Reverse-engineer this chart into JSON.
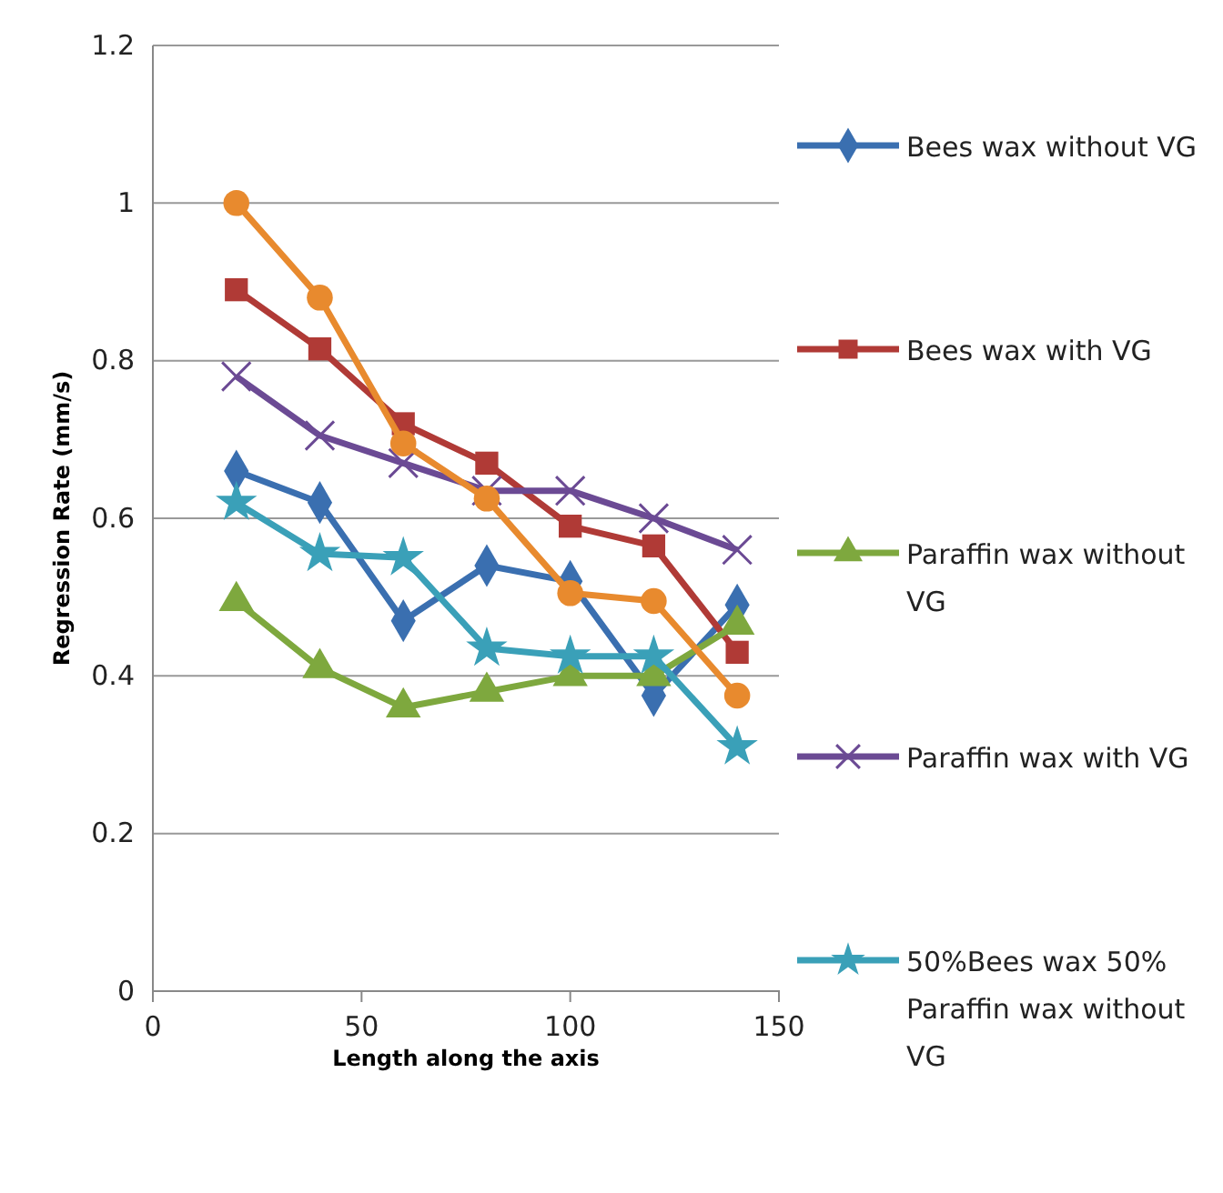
{
  "chart_data": {
    "type": "line",
    "xlabel": "Length along the axis",
    "ylabel": "Regression Rate (mm/s)",
    "xlim": [
      0,
      150
    ],
    "xticks": [
      0,
      50,
      100,
      150
    ],
    "ylim": [
      0,
      1.2
    ],
    "yticks": [
      {
        "value": 0,
        "label": "0"
      },
      {
        "value": 0.2,
        "label": "0.2"
      },
      {
        "value": 0.4,
        "label": "0.4"
      },
      {
        "value": 0.6,
        "label": "0.6"
      },
      {
        "value": 0.8,
        "label": "0.8"
      },
      {
        "value": 1,
        "label": "1"
      },
      {
        "value": 1.2,
        "label": "1.2"
      }
    ],
    "grid": "y",
    "legend": "right",
    "x": [
      20,
      40,
      60,
      80,
      100,
      120,
      140
    ],
    "series": [
      {
        "name": "Bees wax without VG",
        "color": "#3a6fb0",
        "marker": "diamond",
        "values": [
          0.66,
          0.62,
          0.47,
          0.54,
          0.52,
          0.375,
          0.49
        ]
      },
      {
        "name": "Bees wax with VG",
        "color": "#b03a36",
        "marker": "square",
        "values": [
          0.89,
          0.815,
          0.72,
          0.67,
          0.59,
          0.565,
          0.43
        ]
      },
      {
        "name": "Paraffin wax without VG",
        "color": "#7ea83e",
        "marker": "triangle",
        "values": [
          0.495,
          0.41,
          0.36,
          0.38,
          0.4,
          0.4,
          0.465
        ]
      },
      {
        "name": "Paraffin wax with VG",
        "color": "#6b4a94",
        "marker": "cross",
        "values": [
          0.78,
          0.705,
          0.67,
          0.635,
          0.635,
          0.6,
          0.56
        ]
      },
      {
        "name": "50%Bees wax 50% Paraffin wax without VG",
        "color": "#3aa0b8",
        "marker": "star",
        "values": [
          0.62,
          0.555,
          0.55,
          0.435,
          0.425,
          0.425,
          0.31
        ]
      },
      {
        "color": "#e88a2e",
        "marker": "circle",
        "values": [
          1.0,
          0.88,
          0.695,
          0.625,
          0.505,
          0.495,
          0.375
        ]
      }
    ]
  }
}
